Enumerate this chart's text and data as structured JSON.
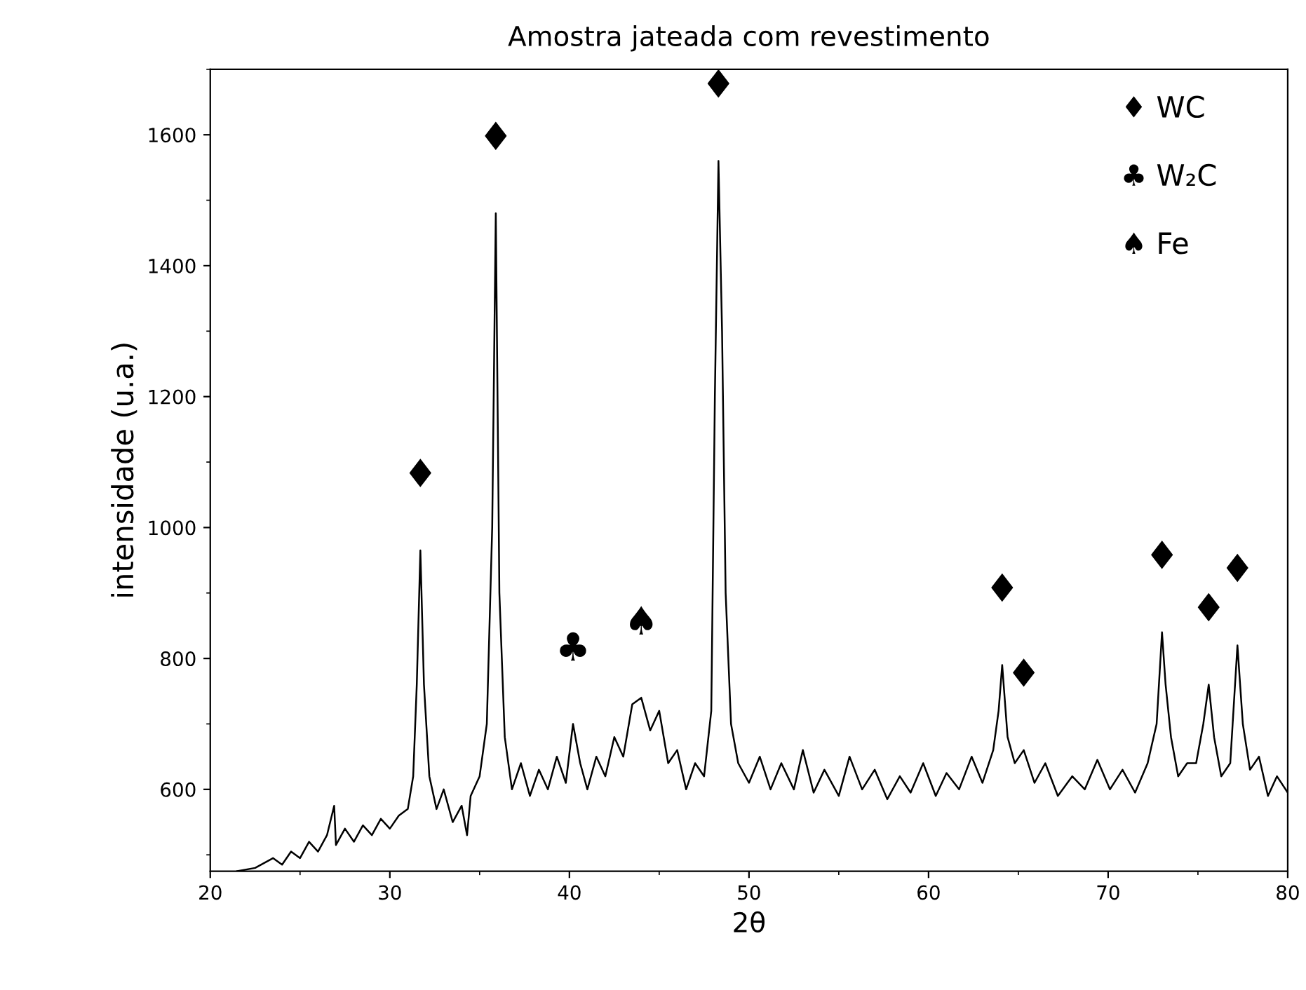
{
  "chart_data": {
    "type": "line",
    "title": "Amostra jateada com revestimento",
    "xlabel": "2θ",
    "ylabel": "intensidade (u.a.)",
    "xlim": [
      20,
      80
    ],
    "ylim": [
      475,
      1700
    ],
    "xticks": [
      20,
      30,
      40,
      50,
      60,
      70,
      80
    ],
    "yticks": [
      600,
      800,
      1000,
      1200,
      1400,
      1600
    ],
    "grid": false,
    "marker": "none",
    "line_style": "solid",
    "series": [
      {
        "color": "#000000",
        "x": [
          21.5,
          22.5,
          23.5,
          24.0,
          24.5,
          25.0,
          25.5,
          26.0,
          26.5,
          26.9,
          27.0,
          27.5,
          28.0,
          28.5,
          29.0,
          29.5,
          30.0,
          30.5,
          31.0,
          31.3,
          31.5,
          31.7,
          31.9,
          32.2,
          32.6,
          33.0,
          33.5,
          34.0,
          34.3,
          34.5,
          35.0,
          35.4,
          35.7,
          35.9,
          36.1,
          36.4,
          36.8,
          37.3,
          37.8,
          38.3,
          38.8,
          39.3,
          39.8,
          40.2,
          40.6,
          41.0,
          41.5,
          42.0,
          42.5,
          43.0,
          43.5,
          44.0,
          44.5,
          45.0,
          45.5,
          46.0,
          46.5,
          47.0,
          47.5,
          47.9,
          48.1,
          48.3,
          48.5,
          48.7,
          49.0,
          49.4,
          50.0,
          50.6,
          51.2,
          51.8,
          52.5,
          53.0,
          53.6,
          54.2,
          55.0,
          55.6,
          56.3,
          57.0,
          57.7,
          58.4,
          59.0,
          59.7,
          60.4,
          61.0,
          61.7,
          62.4,
          63.0,
          63.6,
          63.9,
          64.1,
          64.4,
          64.8,
          65.3,
          65.9,
          66.5,
          67.2,
          68.0,
          68.7,
          69.4,
          70.1,
          70.8,
          71.5,
          72.2,
          72.7,
          73.0,
          73.2,
          73.5,
          73.9,
          74.4,
          74.9,
          75.3,
          75.6,
          75.9,
          76.3,
          76.8,
          77.2,
          77.5,
          77.9,
          78.4,
          78.9,
          79.4,
          80.0
        ],
        "values": [
          475,
          480,
          495,
          485,
          505,
          495,
          520,
          505,
          530,
          575,
          515,
          540,
          520,
          545,
          530,
          555,
          540,
          560,
          570,
          620,
          760,
          965,
          760,
          620,
          570,
          600,
          550,
          575,
          530,
          590,
          620,
          700,
          1000,
          1480,
          900,
          680,
          600,
          640,
          590,
          630,
          600,
          650,
          610,
          700,
          640,
          600,
          650,
          620,
          680,
          650,
          730,
          740,
          690,
          720,
          640,
          660,
          600,
          640,
          620,
          720,
          1200,
          1560,
          1300,
          900,
          700,
          640,
          610,
          650,
          600,
          640,
          600,
          660,
          595,
          630,
          590,
          650,
          600,
          630,
          585,
          620,
          595,
          640,
          590,
          625,
          600,
          650,
          610,
          660,
          720,
          790,
          680,
          640,
          660,
          610,
          640,
          590,
          620,
          600,
          645,
          600,
          630,
          595,
          640,
          700,
          840,
          760,
          680,
          620,
          640,
          640,
          700,
          760,
          680,
          620,
          640,
          820,
          700,
          630,
          650,
          590,
          620,
          595
        ]
      }
    ],
    "annotations": [
      {
        "text": "♦",
        "x": 31.7,
        "y": 965
      },
      {
        "text": "♦",
        "x": 35.9,
        "y": 1480
      },
      {
        "text": "♦",
        "x": 48.3,
        "y": 1560
      },
      {
        "text": "♦",
        "x": 64.1,
        "y": 790
      },
      {
        "text": "♦",
        "x": 65.3,
        "y": 660
      },
      {
        "text": "♦",
        "x": 73.0,
        "y": 840
      },
      {
        "text": "♦",
        "x": 75.6,
        "y": 760
      },
      {
        "text": "♦",
        "x": 77.2,
        "y": 820
      },
      {
        "text": "♣",
        "x": 40.2,
        "y": 700
      },
      {
        "text": "♠",
        "x": 44.0,
        "y": 740
      },
      "♦ WC",
      "♣ W₂C",
      "♠ Fe"
    ]
  }
}
